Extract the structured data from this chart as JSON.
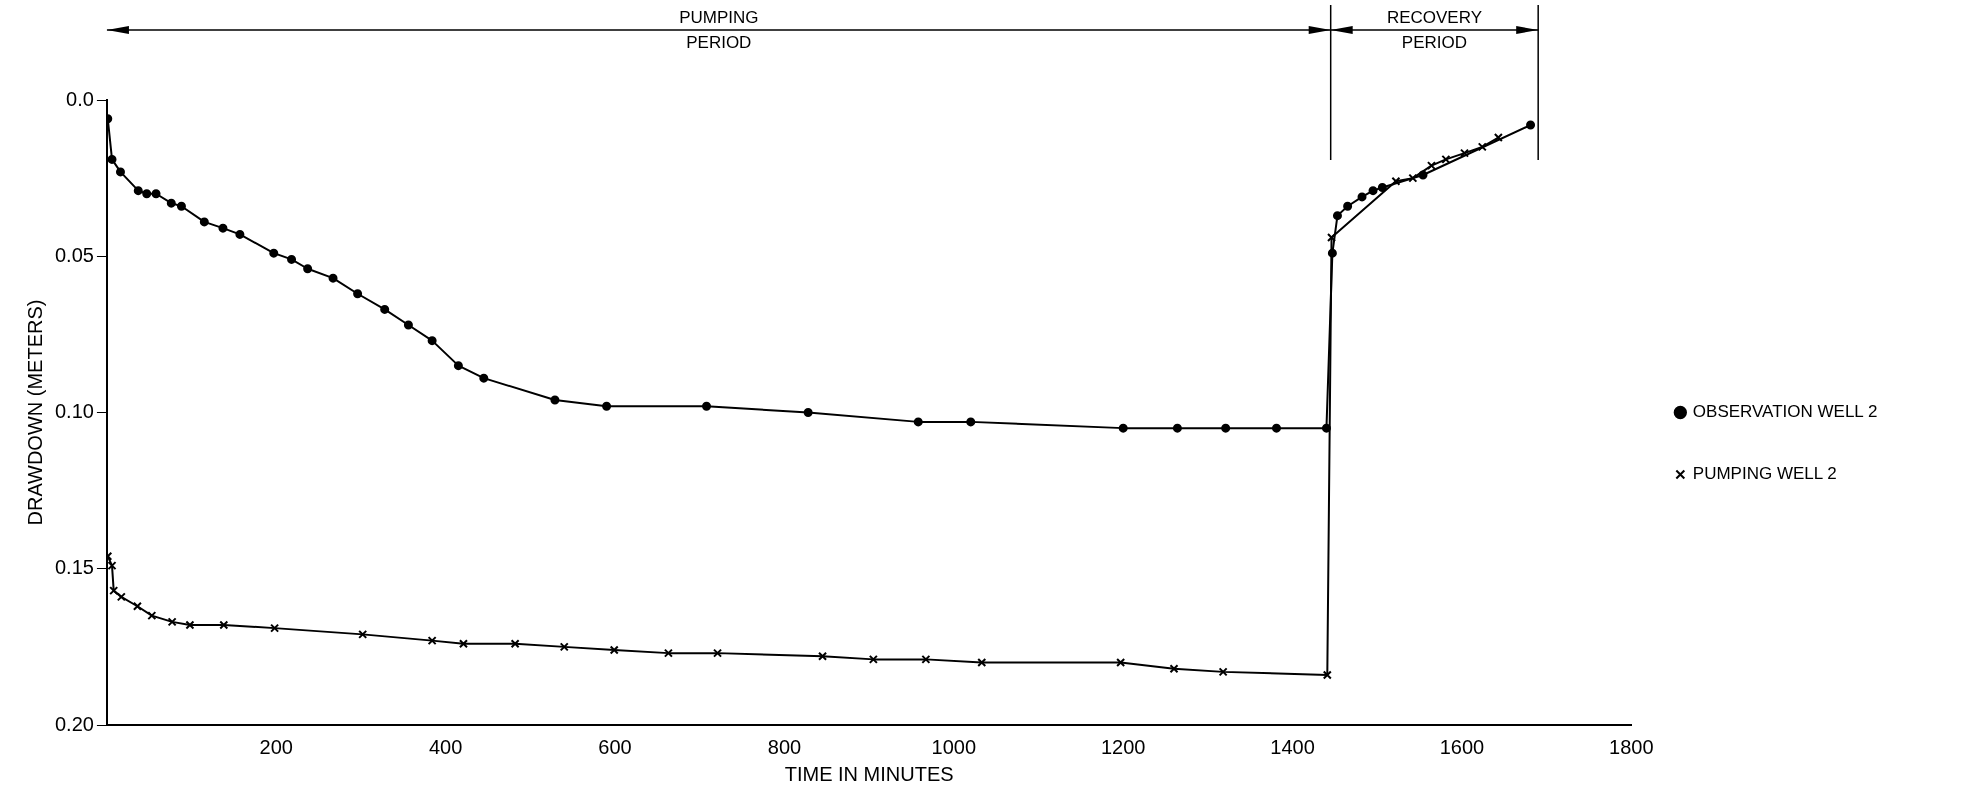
{
  "chart_data": {
    "type": "line",
    "xlabel": "TIME IN MINUTES",
    "ylabel": "DRAWDOWN (METERS)",
    "xlim": [
      0,
      1800
    ],
    "xticks": [
      200,
      400,
      600,
      800,
      1000,
      1200,
      1400,
      1600,
      1800
    ],
    "ylim": [
      0.2,
      0
    ],
    "yticks": [
      {
        "value": 0,
        "label": "0.0"
      },
      0.05,
      {
        "value": 0.1,
        "label": "0.10"
      },
      0.15,
      {
        "value": 0.2,
        "label": "0.20"
      }
    ],
    "grid": false,
    "legend": "right",
    "line_style": "solid",
    "ref_lines": [
      {
        "axis": "x",
        "value": 1445
      },
      {
        "axis": "x",
        "value": 1690
      }
    ],
    "annotations": [
      "PUMPING\nPERIOD",
      "RECOVERY\nPERIOD"
    ],
    "series": [
      {
        "name": "OBSERVATION WELL 2",
        "color": "#000000",
        "marker": "circle",
        "x": [
          1,
          6,
          16,
          37,
          47,
          58,
          76,
          88,
          115,
          137,
          157,
          197,
          218,
          237,
          267,
          296,
          328,
          356,
          384,
          415,
          445,
          529,
          590,
          708,
          828,
          958,
          1020,
          1200,
          1264,
          1321,
          1381,
          1440,
          1447,
          1453,
          1465,
          1482,
          1495,
          1506,
          1554,
          1681
        ],
        "values": [
          0.006,
          0.019,
          0.023,
          0.029,
          0.03,
          0.03,
          0.033,
          0.034,
          0.039,
          0.041,
          0.043,
          0.049,
          0.051,
          0.054,
          0.057,
          0.062,
          0.067,
          0.072,
          0.077,
          0.085,
          0.089,
          0.096,
          0.098,
          0.098,
          0.1,
          0.103,
          0.103,
          0.105,
          0.105,
          0.105,
          0.105,
          0.105,
          0.049,
          0.037,
          0.034,
          0.031,
          0.029,
          0.028,
          0.024,
          0.008
        ]
      },
      {
        "name": "PUMPING WELL 2",
        "color": "#000000",
        "marker": "cross",
        "x": [
          1,
          6,
          8,
          17,
          36,
          53,
          77,
          98,
          138,
          198,
          302,
          384,
          421,
          482,
          540,
          599,
          663,
          721,
          845,
          905,
          967,
          1033,
          1197,
          1260,
          1318,
          1441,
          1446,
          1522,
          1542,
          1564,
          1581,
          1603,
          1624,
          1643
        ],
        "values": [
          0.146,
          0.149,
          0.157,
          0.159,
          0.162,
          0.165,
          0.167,
          0.168,
          0.168,
          0.169,
          0.171,
          0.173,
          0.174,
          0.174,
          0.175,
          0.176,
          0.177,
          0.177,
          0.178,
          0.179,
          0.179,
          0.18,
          0.18,
          0.182,
          0.183,
          0.184,
          0.044,
          0.026,
          0.025,
          0.021,
          0.019,
          0.017,
          0.015,
          0.012
        ]
      }
    ]
  }
}
